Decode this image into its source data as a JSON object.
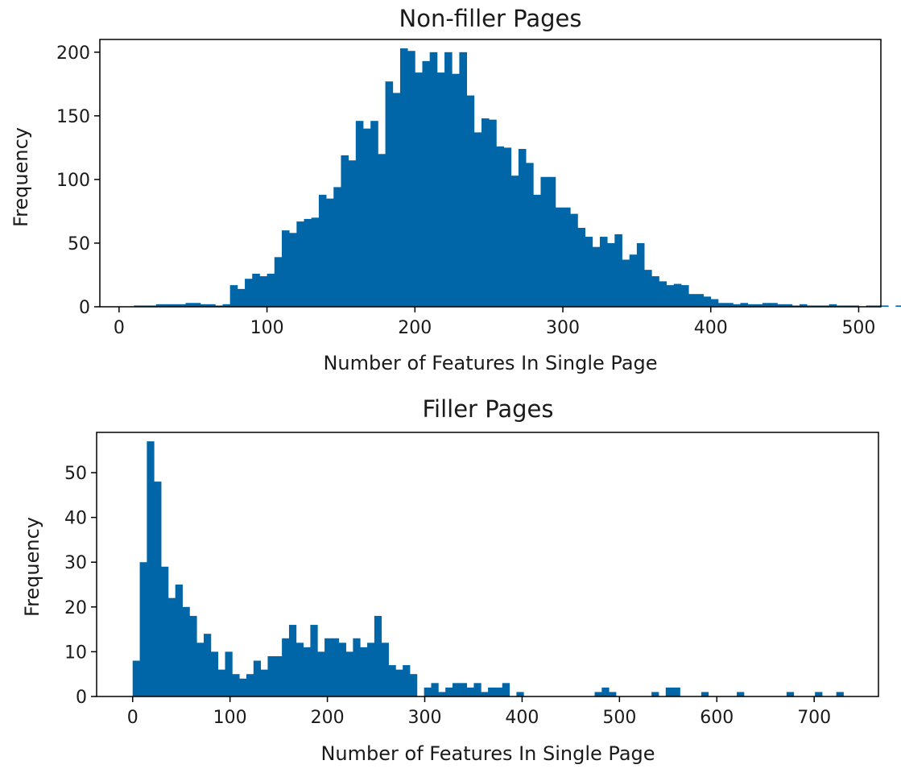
{
  "chart_data": [
    {
      "type": "bar",
      "title": "Non-filler Pages",
      "xlabel": "Number of Features In Single Page",
      "ylabel": "Frequency",
      "xlim": [
        -13,
        515
      ],
      "ylim": [
        0,
        210
      ],
      "xticks": [
        0,
        100,
        200,
        300,
        400,
        500
      ],
      "yticks": [
        0,
        50,
        100,
        150,
        200
      ],
      "color": "#0066a8",
      "bin_start": 10,
      "bin_width": 5,
      "values": [
        1,
        1,
        1,
        2,
        2,
        2,
        2,
        3,
        3,
        2,
        2,
        1,
        2,
        17,
        14,
        22,
        26,
        24,
        26,
        39,
        60,
        58,
        67,
        69,
        70,
        88,
        85,
        94,
        119,
        115,
        146,
        140,
        146,
        120,
        177,
        168,
        203,
        201,
        184,
        193,
        200,
        184,
        200,
        183,
        200,
        166,
        137,
        148,
        147,
        126,
        125,
        103,
        124,
        113,
        88,
        102,
        102,
        78,
        78,
        73,
        62,
        55,
        47,
        55,
        50,
        57,
        37,
        41,
        50,
        29,
        24,
        20,
        17,
        18,
        17,
        10,
        10,
        8,
        6,
        3,
        3,
        2,
        3,
        2,
        2,
        3,
        3,
        2,
        2,
        1,
        2,
        1,
        1,
        1,
        2,
        1,
        1,
        1,
        0,
        1,
        1,
        1,
        0,
        1,
        1
      ]
    },
    {
      "type": "bar",
      "title": "Filler Pages",
      "xlabel": "Number of Features In Single Page",
      "ylabel": "Frequency",
      "xlim": [
        -37,
        766
      ],
      "ylim": [
        0,
        59
      ],
      "xticks": [
        0,
        100,
        200,
        300,
        400,
        500,
        600,
        700
      ],
      "yticks": [
        0,
        10,
        20,
        30,
        40,
        50
      ],
      "color": "#0066a8",
      "bin_start": 0,
      "bin_width": 7.3,
      "values": [
        8,
        30,
        57,
        48,
        29,
        22,
        25,
        20,
        18,
        12,
        14,
        10,
        6,
        10,
        5,
        4,
        5,
        8,
        6,
        9,
        9,
        13,
        16,
        12,
        11,
        16,
        10,
        13,
        13,
        12,
        10,
        13,
        11,
        12,
        18,
        12,
        7,
        6,
        7,
        5,
        0,
        2,
        3,
        1,
        2,
        3,
        3,
        2,
        3,
        1,
        2,
        2,
        3,
        0,
        1,
        0,
        0,
        0,
        0,
        0,
        0,
        0,
        0,
        0,
        0,
        1,
        2,
        1,
        0,
        0,
        0,
        0,
        0,
        1,
        0,
        2,
        2,
        0,
        0,
        0,
        1,
        0,
        0,
        0,
        0,
        1,
        0,
        0,
        0,
        0,
        0,
        0,
        1,
        0,
        0,
        0,
        1,
        0,
        0,
        1,
        0
      ]
    }
  ]
}
